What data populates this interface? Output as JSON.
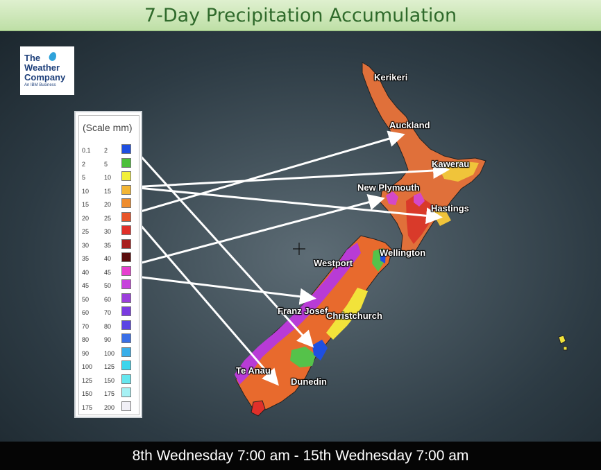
{
  "title": "7-Day Precipitation Accumulation",
  "logo": {
    "line1": "The",
    "line2": "Weather",
    "line3": "Company",
    "line4": "An IBM Business"
  },
  "legend": {
    "title": "(Scale mm)",
    "rows": [
      {
        "from": "0.1",
        "to": "2",
        "color": "#1f4fe0"
      },
      {
        "from": "2",
        "to": "5",
        "color": "#4cbf3a"
      },
      {
        "from": "5",
        "to": "10",
        "color": "#f2ef3a"
      },
      {
        "from": "10",
        "to": "15",
        "color": "#f2b534"
      },
      {
        "from": "15",
        "to": "20",
        "color": "#ee8c2d"
      },
      {
        "from": "20",
        "to": "25",
        "color": "#e8552a"
      },
      {
        "from": "25",
        "to": "30",
        "color": "#e0302a"
      },
      {
        "from": "30",
        "to": "35",
        "color": "#a8201e"
      },
      {
        "from": "35",
        "to": "40",
        "color": "#5a0d0d"
      },
      {
        "from": "40",
        "to": "45",
        "color": "#e63fcf"
      },
      {
        "from": "45",
        "to": "50",
        "color": "#c743dc"
      },
      {
        "from": "50",
        "to": "60",
        "color": "#9b3edb"
      },
      {
        "from": "60",
        "to": "70",
        "color": "#7a3be0"
      },
      {
        "from": "70",
        "to": "80",
        "color": "#5a44e3"
      },
      {
        "from": "80",
        "to": "90",
        "color": "#3a6fe6"
      },
      {
        "from": "90",
        "to": "100",
        "color": "#39aee9"
      },
      {
        "from": "100",
        "to": "125",
        "color": "#3dd5ec"
      },
      {
        "from": "125",
        "to": "150",
        "color": "#66e7ef"
      },
      {
        "from": "150",
        "to": "175",
        "color": "#a6f1f4"
      },
      {
        "from": "175",
        "to": "200",
        "color": "#f1f0f6"
      }
    ]
  },
  "cities": {
    "kerikeri": "Kerikeri",
    "auckland": "Auckland",
    "kawerau": "Kawerau",
    "new_plymouth": "New Plymouth",
    "hastings": "Hastings",
    "wellington": "Wellington",
    "westport": "Westport",
    "franz_josef": "Franz Josef",
    "christchurch": "Christchurch",
    "te_anau": "Te Anau",
    "dunedin": "Dunedin"
  },
  "period": "8th Wednesday 7:00 am - 15th Wednesday 7:00 am"
}
